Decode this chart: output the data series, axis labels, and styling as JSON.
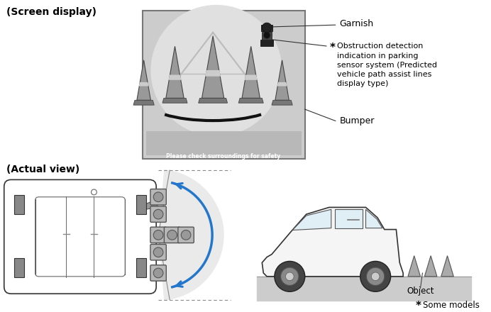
{
  "title_screen": "(Screen display)",
  "title_actual": "(Actual view)",
  "label_garnish": "Garnish",
  "label_obstruction": "Obstruction detection\nindication in parking\nsensor system (Predicted\nvehicle path assist lines\ndisplay type)",
  "label_bumper": "Bumper",
  "label_object": "Object",
  "label_some_models": "*Some models",
  "safety_text": "Please check surroundings for safety",
  "bg_color": "#ffffff",
  "screen_bg": "#cccccc",
  "cone_gray": "#888888",
  "cone_dark": "#555555",
  "arc_color": "#111111",
  "arrow_color": "#2277cc",
  "sensor_fill": "#aaaaaa",
  "sensor_edge": "#666666",
  "text_color": "#000000",
  "safety_text_color": "#ffffff",
  "car_outline": "#333333",
  "ground_gray": "#cccccc",
  "wedge_color": "#e8e8e8"
}
